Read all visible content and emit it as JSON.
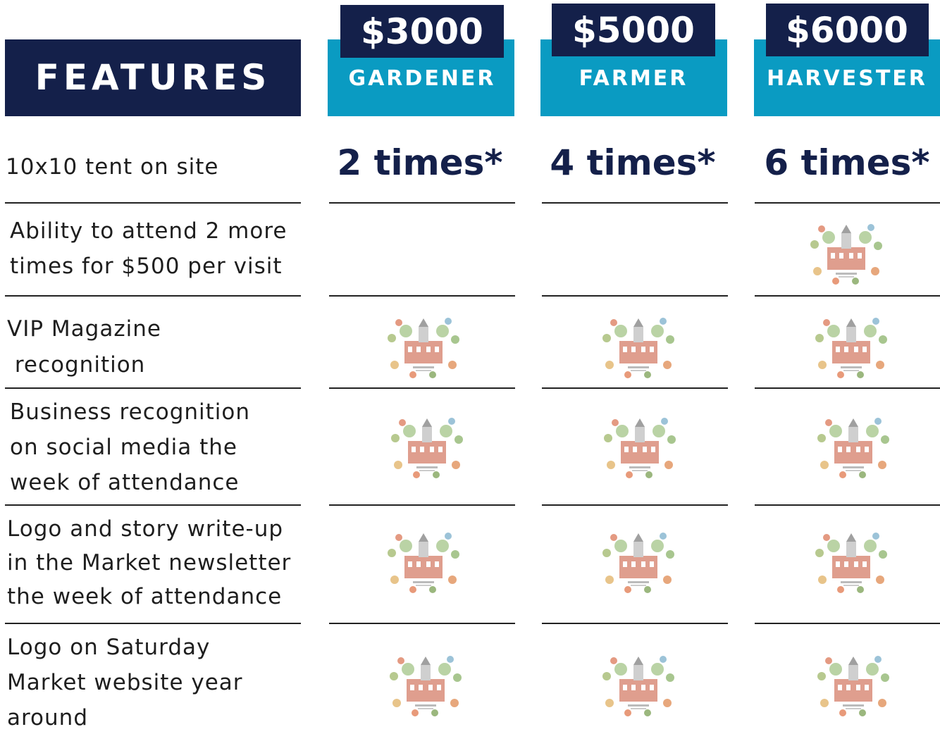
{
  "header": {
    "features_label": "FEATURES"
  },
  "tiers": [
    {
      "price": "$3000",
      "name": "GARDENER",
      "tent": "2 times*"
    },
    {
      "price": "$5000",
      "name": "FARMER",
      "tent": "4 times*"
    },
    {
      "price": "$6000",
      "name": "HARVESTER",
      "tent": "6 times*"
    }
  ],
  "features": [
    {
      "lines": [
        "10x10 tent on site"
      ]
    },
    {
      "lines": [
        "Ability to attend 2 more",
        "times for $500 per visit"
      ]
    },
    {
      "lines": [
        "VIP Magazine",
        " recognition"
      ]
    },
    {
      "lines": [
        "Business recognition",
        "on social media the",
        "week of attendance"
      ]
    },
    {
      "lines": [
        "Logo and story write-up",
        "in the Market newsletter",
        "the week of attendance"
      ]
    },
    {
      "lines": [
        "Logo on Saturday",
        "Market website year",
        "around"
      ]
    }
  ]
}
